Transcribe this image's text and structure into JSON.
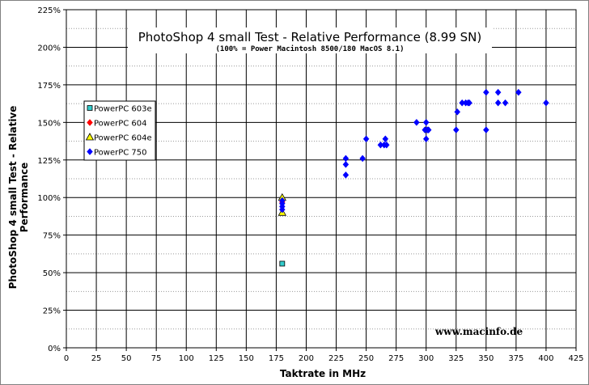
{
  "chart_data": {
    "type": "scatter",
    "title": "PhotoShop 4 small Test - Relative Performance (8.99 SN)",
    "subtitle": "(100% = Power Macintosh 8500/180 MacOS 8.1)",
    "xlabel": "Taktrate in MHz",
    "ylabel_lines": [
      "PhotoShop 4 small Test - Relative",
      "Performance"
    ],
    "xlim": [
      0,
      425
    ],
    "ylim": [
      0,
      225
    ],
    "x_ticks": [
      0,
      25,
      50,
      75,
      100,
      125,
      150,
      175,
      200,
      225,
      250,
      275,
      300,
      325,
      350,
      375,
      400,
      425
    ],
    "y_ticks": [
      0,
      25,
      50,
      75,
      100,
      125,
      150,
      175,
      200,
      225
    ],
    "y_tick_suffix": "%",
    "grid": true,
    "legend_position": "left",
    "watermark": "www.macinfo.de",
    "series": [
      {
        "name": "PowerPC 603e",
        "marker": "square",
        "color": "#33cccc",
        "points": [
          [
            180,
            56
          ]
        ]
      },
      {
        "name": "PowerPC 604",
        "marker": "diamond",
        "color": "#ff0000",
        "points": [
          [
            180,
            97
          ]
        ]
      },
      {
        "name": "PowerPC 604e",
        "marker": "triangle",
        "color": "#ffff00",
        "points": [
          [
            180,
            90
          ],
          [
            180,
            100
          ]
        ]
      },
      {
        "name": "PowerPC 750",
        "marker": "diamond",
        "color": "#0000ff",
        "points": [
          [
            180,
            92
          ],
          [
            180,
            94
          ],
          [
            180,
            96
          ],
          [
            180,
            98
          ],
          [
            233,
            115
          ],
          [
            233,
            122
          ],
          [
            233,
            126
          ],
          [
            247,
            126
          ],
          [
            250,
            139
          ],
          [
            262,
            135
          ],
          [
            265,
            135
          ],
          [
            266,
            139
          ],
          [
            267,
            135
          ],
          [
            292,
            150
          ],
          [
            299,
            145
          ],
          [
            300,
            139
          ],
          [
            300,
            150
          ],
          [
            301,
            145
          ],
          [
            302,
            145
          ],
          [
            325,
            145
          ],
          [
            326,
            157
          ],
          [
            330,
            163
          ],
          [
            333,
            163
          ],
          [
            335,
            163
          ],
          [
            336,
            163
          ],
          [
            350,
            145
          ],
          [
            350,
            170
          ],
          [
            360,
            163
          ],
          [
            360,
            170
          ],
          [
            366,
            163
          ],
          [
            377,
            170
          ],
          [
            400,
            163
          ]
        ]
      }
    ]
  }
}
